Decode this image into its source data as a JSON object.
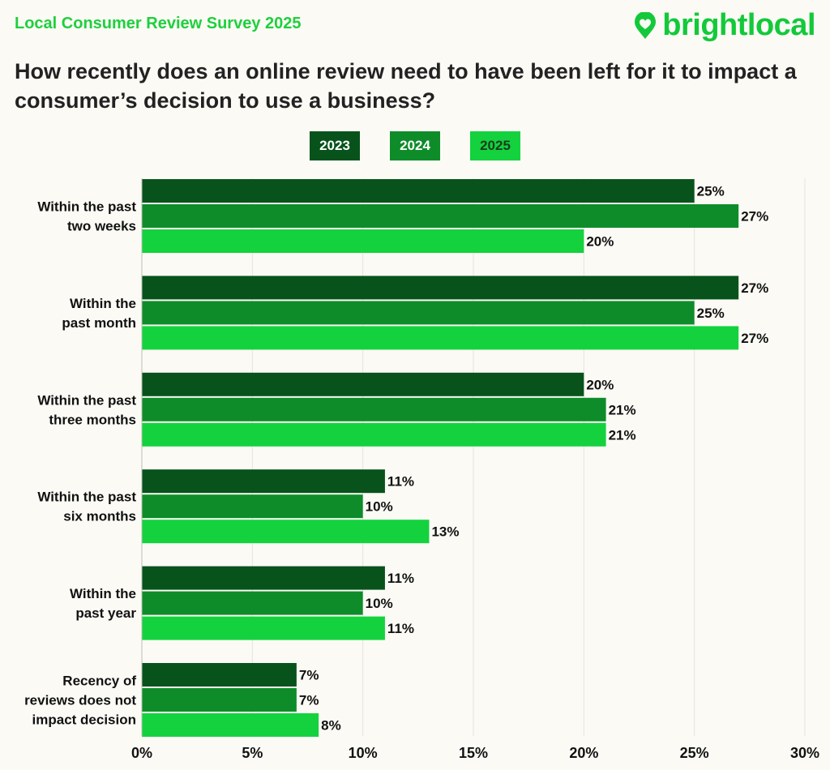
{
  "header": {
    "survey_title": "Local Consumer Review Survey 2025",
    "brand_name": "brightlocal",
    "question": "How recently does an online review need to have been left for it to impact a consumer’s decision to use a business?"
  },
  "colors": {
    "s2023": "#07531b",
    "s2024": "#0e8c2a",
    "s2025": "#14d23e",
    "brand": "#13c93a",
    "title": "#1ed03c"
  },
  "chart_data": {
    "type": "bar",
    "orientation": "horizontal",
    "title": "How recently does an online review need to have been left for it to impact a consumer’s decision to use a business?",
    "categories": [
      [
        "Within the past",
        "two weeks"
      ],
      [
        "Within the",
        "past month"
      ],
      [
        "Within the past",
        "three months"
      ],
      [
        "Within the past",
        "six months"
      ],
      [
        "Within the",
        "past year"
      ],
      [
        "Recency of",
        "reviews does not",
        "impact decision"
      ]
    ],
    "series": [
      {
        "name": "2023",
        "values": [
          25,
          27,
          20,
          11,
          11,
          7
        ]
      },
      {
        "name": "2024",
        "values": [
          27,
          25,
          21,
          10,
          10,
          7
        ]
      },
      {
        "name": "2025",
        "values": [
          20,
          27,
          21,
          13,
          11,
          8
        ]
      }
    ],
    "xlim": [
      0,
      30
    ],
    "xticks": [
      0,
      5,
      10,
      15,
      20,
      25,
      30
    ],
    "tick_suffix": "%",
    "value_suffix": "%",
    "grid": true,
    "legend": "top-center"
  }
}
